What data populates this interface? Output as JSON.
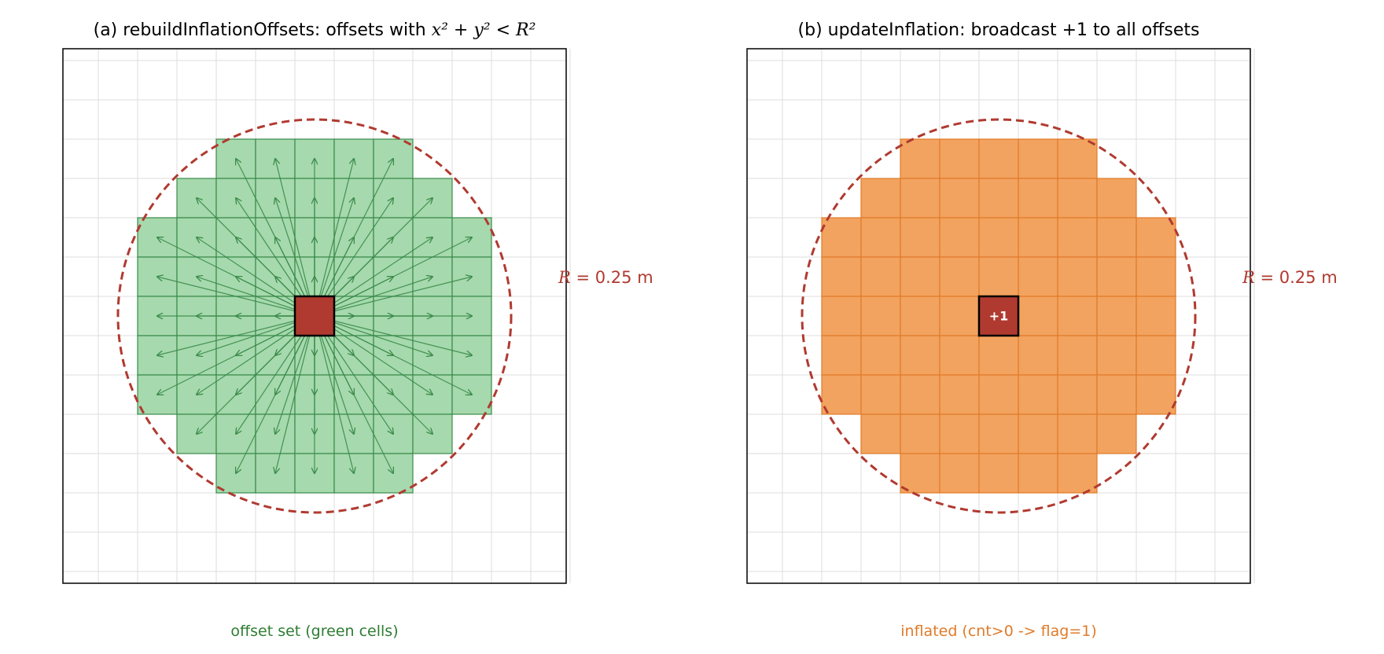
{
  "colors": {
    "green_fill": "#a6d9ad",
    "green_stroke": "#3a8a4a",
    "green_text": "#2e7d32",
    "orange_fill": "#f2a35f",
    "orange_stroke": "#e07b2a",
    "orange_text": "#e07b2a",
    "red": "#b03a30",
    "grid": "#dddddd"
  },
  "grid": {
    "cells": 13,
    "radius_cells": 5
  },
  "panel_a": {
    "title_prefix": "(a) rebuildInflationOffsets: offsets with ",
    "title_math": "x² + y² < R²",
    "radius_label_var": "R",
    "radius_label_value": " = 0.25 m",
    "caption": "offset set (green cells)"
  },
  "panel_b": {
    "title": "(b) updateInflation: broadcast +1 to all offsets",
    "center_label": "+1",
    "radius_label_var": "R",
    "radius_label_value": " = 0.25 m",
    "caption": "inflated (cnt>0 -> flag=1)"
  }
}
